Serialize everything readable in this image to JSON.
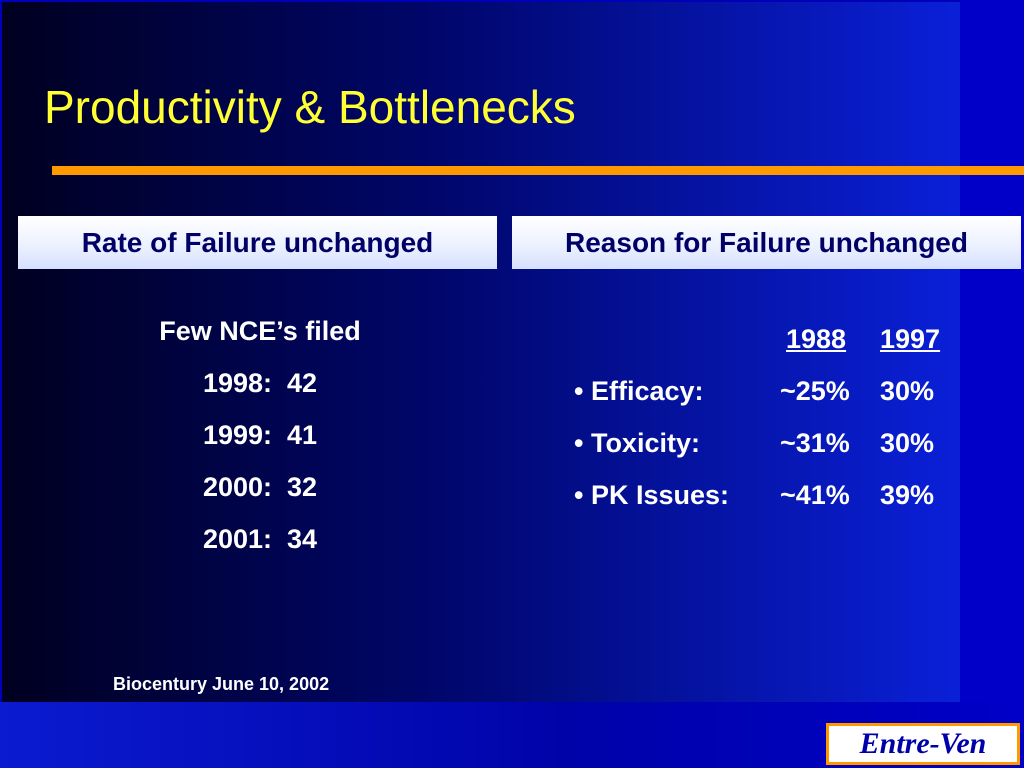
{
  "slide": {
    "title": "Productivity & Bottlenecks",
    "left_header": "Rate of Failure unchanged",
    "right_header": "Reason for Failure unchanged",
    "left_lines": [
      "Few NCE’s filed",
      "1998:  42",
      "1999:  41",
      "2000:  32",
      "2001:  34"
    ],
    "table": {
      "col_1988": "1988",
      "col_1997": "1997",
      "rows": [
        {
          "label": "• Efficacy:",
          "v1988": "~25%",
          "v1997": "30%"
        },
        {
          "label": "• Toxicity:",
          "v1988": "~31%",
          "v1997": "30%"
        },
        {
          "label": "• PK Issues:",
          "v1988": "~41%",
          "v1997": "39%"
        }
      ]
    },
    "source": "Biocentury June 10, 2002",
    "logo": "Entre-Ven"
  },
  "colors": {
    "title": "#ffff33",
    "rule": "#ff9900",
    "box_text": "#000066",
    "logo_text": "#0000aa"
  }
}
